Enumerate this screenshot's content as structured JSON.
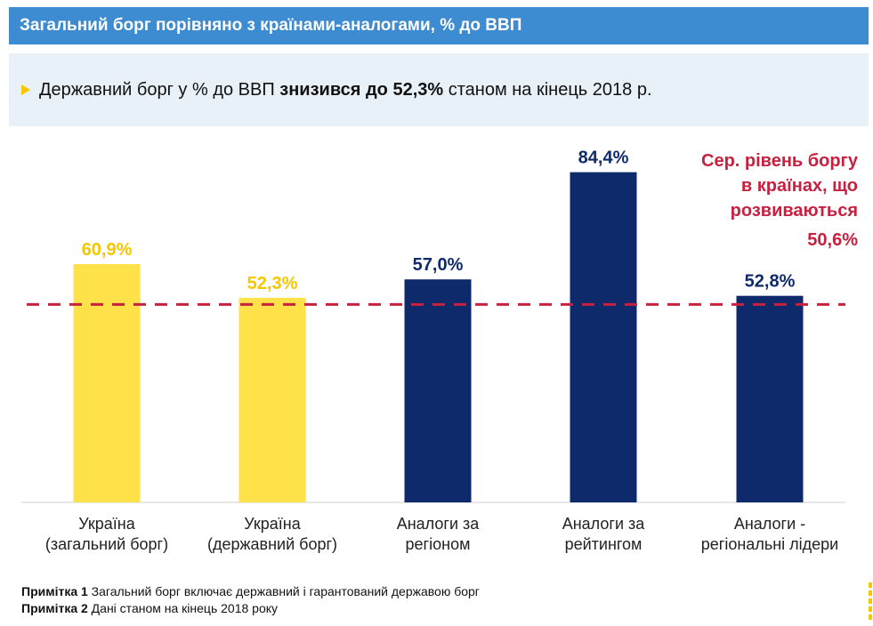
{
  "header": {
    "title": "Загальний борг порівняно з країнами-аналогами, % до ВВП"
  },
  "banner": {
    "text_before": "Державний борг у % до ВВП ",
    "text_bold": "знизився до 52,3%",
    "text_after": " станом на кінець 2018 р."
  },
  "chart_data": {
    "type": "bar",
    "categories": [
      [
        "Україна",
        "(загальний борг)"
      ],
      [
        "Україна",
        "(державний борг)"
      ],
      [
        "Аналоги за",
        "регіоном"
      ],
      [
        "Аналоги за",
        "рейтингом"
      ],
      [
        "Аналоги -",
        "регіональні лідери"
      ]
    ],
    "values": [
      60.9,
      52.3,
      57.0,
      84.4,
      52.8
    ],
    "value_labels": [
      "60,9%",
      "52,3%",
      "57,0%",
      "84,4%",
      "52,8%"
    ],
    "bar_colors": [
      "#ffe14a",
      "#ffe14a",
      "#0f2a6b",
      "#0f2a6b",
      "#0f2a6b"
    ],
    "label_colors": [
      "#f6c700",
      "#f6c700",
      "#0f2a6b",
      "#0f2a6b",
      "#0f2a6b"
    ],
    "reference_line": {
      "value": 50.6,
      "label_lines": [
        "Сер. рівень боргу",
        "в країнах, що",
        "розвиваються"
      ],
      "value_label": "50,6%",
      "color": "#c8203f",
      "style": "dashed"
    },
    "ylim": [
      0,
      100
    ],
    "grid": false,
    "title": "",
    "xlabel": "",
    "ylabel": ""
  },
  "notes": [
    {
      "bold": "Примітка 1",
      "text": " Загальний борг включає державний і гарантований державою борг"
    },
    {
      "bold": "Примітка 2",
      "text": " Дані станом на кінець 2018 року"
    }
  ]
}
